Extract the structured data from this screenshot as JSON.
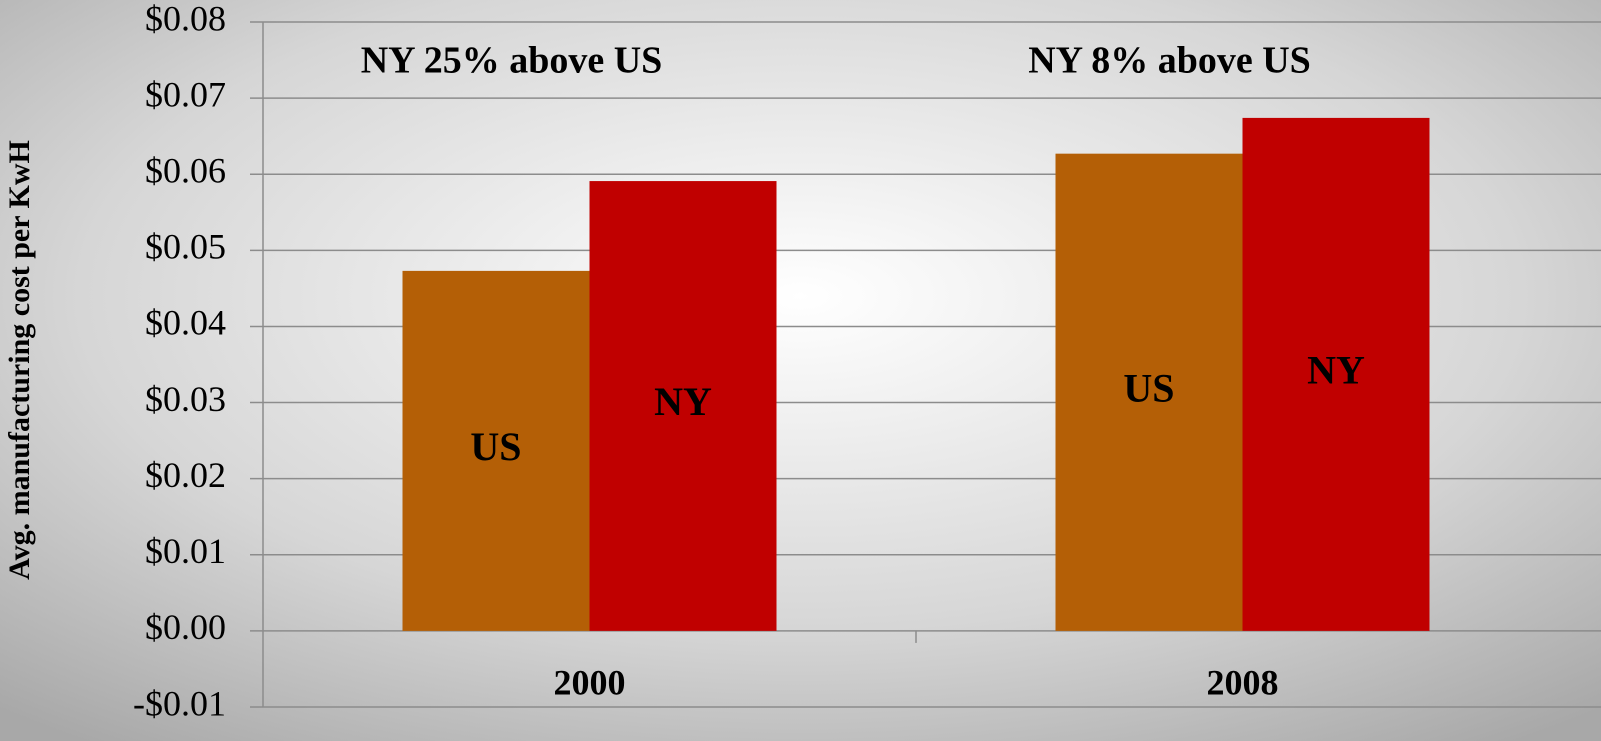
{
  "chart_data": {
    "type": "bar",
    "y_axis_label": "Avg. manufacturing cost per KwH",
    "categories": [
      "2000",
      "2008"
    ],
    "series": [
      {
        "name": "US",
        "color": "#b45f06",
        "values": [
          0.0473,
          0.0627
        ]
      },
      {
        "name": "NY",
        "color": "#c00000",
        "values": [
          0.0591,
          0.0674
        ]
      }
    ],
    "annotations": [
      "NY 25% above US",
      "NY 8% above US"
    ],
    "ylim": [
      -0.01,
      0.08
    ],
    "yticks": [
      {
        "value": -0.01,
        "label": "-$0.01"
      },
      {
        "value": 0,
        "label": "$0.00"
      },
      {
        "value": 0.01,
        "label": "$0.01"
      },
      {
        "value": 0.02,
        "label": "$0.02"
      },
      {
        "value": 0.03,
        "label": "$0.03"
      },
      {
        "value": 0.04,
        "label": "$0.04"
      },
      {
        "value": 0.05,
        "label": "$0.05"
      },
      {
        "value": 0.06,
        "label": "$0.06"
      },
      {
        "value": 0.07,
        "label": "$0.07"
      },
      {
        "value": 0.08,
        "label": "$0.08"
      }
    ],
    "grid": true
  }
}
